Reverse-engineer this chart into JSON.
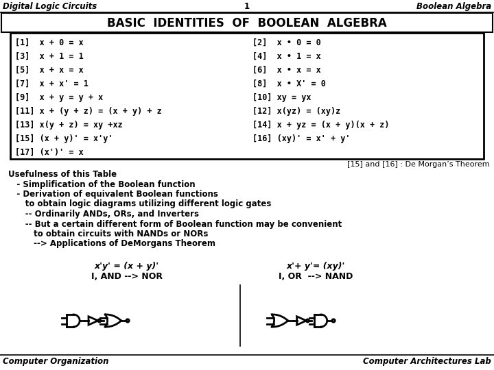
{
  "bg_color": "#ffffff",
  "header_left": "Digital Logic Circuits",
  "header_center": "1",
  "header_right": "Boolean Algebra",
  "title": "BASIC  IDENTITIES  OF  BOOLEAN  ALGEBRA",
  "footer_left": "Computer Organization",
  "footer_right": "Computer Architectures Lab",
  "left_identities": [
    "[1]  x + 0 = x",
    "[3]  x + 1 = 1",
    "[5]  x + x = x",
    "[7]  x + x' = 1",
    "[9]  x + y = y + x",
    "[11] x + (y + z) = (x + y) + z",
    "[13] x(y + z) = xy +xz",
    "[15] (x + y)' = x'y'",
    "[17] (x')' = x"
  ],
  "right_identities": [
    "[2]  x • 0 = 0",
    "[4]  x • 1 = x",
    "[6]  x • x = x",
    "[8]  x • X' = 0",
    "[10] xy = yx",
    "[12] x(yz) = (xy)z",
    "[14] x + yz = (x + y)(x + z)",
    "[16] (xy)' = x' + y'",
    ""
  ],
  "demorgan_note": "[15] and [16] : De Morgan’s Theorem",
  "usefulness_lines": [
    "Usefulness of this Table",
    "   - Simplification of the Boolean function",
    "   - Derivation of equivalent Boolean functions",
    "      to obtain logic diagrams utilizing different logic gates",
    "      -- Ordinarily ANDs, ORs, and Inverters",
    "      -- But a certain different form of Boolean function may be convenient",
    "         to obtain circuits with NANDs or NORs",
    "         --> Applications of DeMorgans Theorem"
  ],
  "formula_left_line1": "x'y' = (x + y)'",
  "formula_left_line2": "I, AND --> NOR",
  "formula_right_line1": "x'+ y'= (xy)'",
  "formula_right_line2": "I, OR  --> NAND",
  "gate_lw": 2.0,
  "gate_size": 18
}
